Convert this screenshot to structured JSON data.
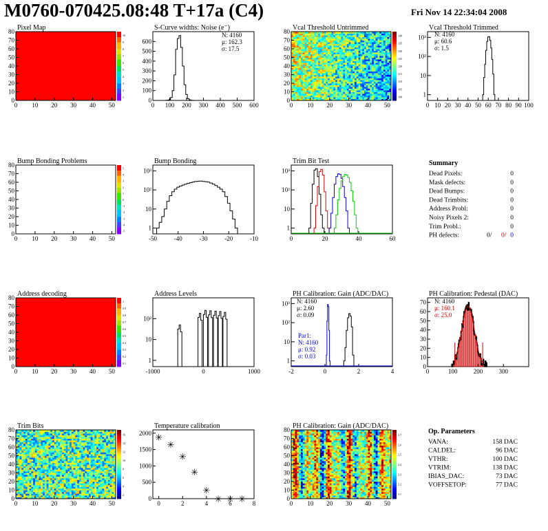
{
  "header": {
    "title": "M0760-070425.08:48 T+17a (C4)",
    "date": "Fri Nov 14 22:34:04 2008"
  },
  "colors": {
    "fill_red": "#ff0000",
    "series_black": "#000000",
    "series_red": "#dd0000",
    "series_blue": "#0000dd",
    "series_green": "#00cc00",
    "pedestal_hatch": "#cc0000"
  },
  "panels": {
    "pixel_map": {
      "title": "Pixel Map",
      "zmax": 10,
      "xticks": [
        "0",
        "10",
        "20",
        "30",
        "40",
        "50"
      ],
      "yticks": [
        "0",
        "10",
        "20",
        "30",
        "40",
        "50",
        "60",
        "70",
        "80"
      ],
      "palette_ticks": [
        "1",
        "2",
        "3",
        "4",
        "5",
        "6",
        "7",
        "8",
        "9",
        "10"
      ]
    },
    "vcal_untrimmed": {
      "title": "Vcal Threshold Untrimmed",
      "xticks": [
        "0",
        "10",
        "20",
        "30",
        "40",
        "50"
      ],
      "yticks": [
        "0",
        "10",
        "20",
        "30",
        "40",
        "50",
        "60",
        "70",
        "80"
      ],
      "palette_ticks": [
        "100",
        "105",
        "110",
        "115",
        "120",
        "125",
        "130",
        "135",
        "140"
      ]
    },
    "bump_bonding_problems": {
      "title": "Bump Bonding Problems",
      "xticks": [
        "0",
        "10",
        "20",
        "30",
        "40",
        "50"
      ],
      "yticks": [
        "0",
        "10",
        "20",
        "30",
        "40",
        "50",
        "60",
        "70",
        "80"
      ],
      "palette_ticks": [
        "-5",
        "-4",
        "-3",
        "-2",
        "-1",
        "0",
        "1",
        "2",
        "3",
        "4",
        "5"
      ]
    },
    "address_decoding": {
      "title": "Address decoding",
      "xticks": [
        "0",
        "10",
        "20",
        "30",
        "40",
        "50"
      ],
      "yticks": [
        "0",
        "10",
        "20",
        "30",
        "40",
        "50",
        "60",
        "70",
        "80"
      ],
      "palette_ticks": [
        "0.1",
        "0.2",
        "0.3",
        "0.4",
        "0.5",
        "0.6",
        "0.7",
        "0.8",
        "0.9",
        "1"
      ]
    },
    "trim_bits": {
      "title": "Trim Bits",
      "xticks": [
        "0",
        "10",
        "20",
        "30",
        "40",
        "50"
      ],
      "yticks": [
        "0",
        "10",
        "20",
        "30",
        "40",
        "50",
        "60",
        "70",
        "80"
      ],
      "palette_ticks": [
        "2",
        "4",
        "6",
        "8",
        "10",
        "12",
        "14",
        "16"
      ]
    },
    "ph_gain_map": {
      "title": "PH Calibration: Gain (ADC/DAC)",
      "xticks": [
        "0",
        "10",
        "20",
        "30",
        "40",
        "50"
      ],
      "yticks": [
        "0",
        "10",
        "20",
        "30",
        "40",
        "50",
        "60",
        "70",
        "80"
      ],
      "palette_ticks": [
        "2.1",
        "2.2",
        "2.3",
        "2.4",
        "2.5",
        "2.6",
        "2.7"
      ]
    }
  },
  "summary": {
    "title": "Summary",
    "rows": [
      {
        "label": "Dead Pixels:",
        "value": "0"
      },
      {
        "label": "Mask defects:",
        "value": "0"
      },
      {
        "label": "Dead Bumps:",
        "value": "0"
      },
      {
        "label": "Dead Trimbits:",
        "value": "0"
      },
      {
        "label": "Address Probl:",
        "value": "0"
      },
      {
        "label": "Noisy Pixels 2:",
        "value": "0"
      },
      {
        "label": "Trim Probl.:",
        "value": "0"
      }
    ],
    "ph_defects": {
      "label": "PH defects:",
      "v1": "0/",
      "v2": "0/",
      "v3": "0"
    }
  },
  "op_parameters": {
    "title": "Op. Parameters",
    "rows": [
      {
        "label": "VANA:",
        "value": "158 DAC"
      },
      {
        "label": "CALDEL:",
        "value": "96 DAC"
      },
      {
        "label": "VTHR:",
        "value": "100 DAC"
      },
      {
        "label": "VTRIM:",
        "value": "138 DAC"
      },
      {
        "label": "IBIAS_DAC:",
        "value": "73 DAC"
      },
      {
        "label": "VOFFSETOP:",
        "value": "77 DAC"
      }
    ]
  },
  "chart_data": [
    {
      "type": "histogram",
      "id": "scurve_noise",
      "title": "S-Curve widths: Noise (e⁻)",
      "xlim": [
        0,
        600
      ],
      "ylim": [
        0,
        700
      ],
      "log": false,
      "xticks": [
        "0",
        "100",
        "200",
        "300",
        "400",
        "500",
        "600"
      ],
      "yticks": [
        "0",
        "100",
        "200",
        "300",
        "400",
        "500",
        "600"
      ],
      "stats": {
        "N": "N: 4160",
        "mu": "μ: 162.3",
        "sigma": "σ: 17.5"
      },
      "series": [
        {
          "color": "black",
          "x": [
            80,
            90,
            100,
            110,
            120,
            130,
            140,
            150,
            160,
            170,
            180,
            190,
            200,
            210,
            220,
            230,
            240
          ],
          "values": [
            1,
            3,
            8,
            30,
            100,
            260,
            520,
            630,
            660,
            540,
            350,
            160,
            60,
            18,
            6,
            2,
            1
          ]
        }
      ]
    },
    {
      "type": "histogram",
      "id": "vcal_trimmed",
      "title": "Vcal Threshold Trimmed",
      "xlim": [
        0,
        100
      ],
      "ylim": [
        0.5,
        2000
      ],
      "log": true,
      "xticks": [
        "0",
        "10",
        "20",
        "30",
        "40",
        "50",
        "60",
        "70",
        "80",
        "90",
        "100"
      ],
      "yticks": [
        "1",
        "10",
        "10²",
        "10³"
      ],
      "stats": {
        "N": "N: 4160",
        "mu": "μ: 60.6",
        "sigma": "σ: 1.5"
      },
      "series": [
        {
          "color": "black",
          "x": [
            55,
            56,
            57,
            58,
            59,
            60,
            61,
            62,
            63,
            64,
            65,
            66
          ],
          "values": [
            1,
            8,
            40,
            210,
            620,
            1050,
            1100,
            700,
            280,
            70,
            12,
            1
          ]
        }
      ]
    },
    {
      "type": "histogram",
      "id": "bump_bonding",
      "title": "Bump Bonding",
      "xlim": [
        -50,
        -10
      ],
      "ylim": [
        0.5,
        2000
      ],
      "log": true,
      "xticks": [
        "-50",
        "-40",
        "-30",
        "-20",
        "-10"
      ],
      "yticks": [
        "1",
        "10",
        "10²",
        "10³"
      ],
      "series": [
        {
          "color": "black",
          "x": [
            -48,
            -47,
            -46,
            -45,
            -44,
            -43,
            -42,
            -41,
            -40,
            -39,
            -38,
            -37,
            -36,
            -35,
            -34,
            -33,
            -32,
            -31,
            -30,
            -29,
            -28,
            -27,
            -26,
            -25,
            -24,
            -23,
            -22,
            -21,
            -20,
            -19,
            -18,
            -17,
            -16
          ],
          "values": [
            1,
            2,
            4,
            10,
            25,
            50,
            80,
            110,
            140,
            160,
            180,
            200,
            220,
            240,
            260,
            275,
            285,
            290,
            280,
            270,
            255,
            230,
            200,
            170,
            140,
            110,
            80,
            45,
            20,
            8,
            3,
            1,
            0
          ]
        }
      ]
    },
    {
      "type": "histogram",
      "id": "trim_bit_test",
      "title": "Trim Bit Test",
      "xlim": [
        0,
        60
      ],
      "ylim": [
        0.5,
        2000
      ],
      "log": true,
      "xticks": [
        "0",
        "20",
        "40",
        "60"
      ],
      "yticks": [
        "1",
        "10",
        "10²",
        "10³"
      ],
      "series": [
        {
          "color": "black",
          "x": [
            11,
            12,
            13,
            14,
            15,
            16,
            17,
            18,
            19
          ],
          "values": [
            1,
            20,
            200,
            1100,
            1300,
            500,
            60,
            5,
            1
          ]
        },
        {
          "color": "red",
          "x": [
            14,
            15,
            16,
            17,
            18,
            19,
            20,
            21,
            22
          ],
          "values": [
            1,
            15,
            150,
            900,
            1200,
            600,
            80,
            8,
            1
          ]
        },
        {
          "color": "blue",
          "x": [
            23,
            24,
            25,
            26,
            27,
            28,
            29,
            30,
            31,
            32,
            33,
            34
          ],
          "values": [
            1,
            6,
            40,
            200,
            500,
            700,
            650,
            400,
            150,
            40,
            8,
            1
          ]
        },
        {
          "color": "green",
          "x": [
            26,
            27,
            28,
            29,
            30,
            31,
            32,
            33,
            34,
            35,
            36,
            37,
            38,
            39
          ],
          "values": [
            1,
            5,
            30,
            120,
            300,
            500,
            650,
            600,
            450,
            250,
            90,
            25,
            5,
            1
          ]
        }
      ]
    },
    {
      "type": "histogram",
      "id": "address_levels",
      "title": "Address Levels",
      "xlim": [
        -1500,
        1500
      ],
      "ylim": [
        0.5,
        1000
      ],
      "log": true,
      "xticks": [
        "-1000",
        "0",
        "1000"
      ],
      "yticks": [
        "1",
        "10",
        "10²"
      ],
      "series": [
        {
          "color": "black",
          "peaks": [
            -700,
            -100,
            60,
            210,
            360,
            500,
            640
          ],
          "heights": [
            50,
            180,
            250,
            240,
            230,
            220,
            200
          ]
        }
      ]
    },
    {
      "type": "histogram",
      "id": "ph_gain",
      "title": "PH Calibration: Gain (ADC/DAC)",
      "xlim": [
        -2,
        6
      ],
      "ylim": [
        0.5,
        2000
      ],
      "log": true,
      "xticks": [
        "-2",
        "0",
        "2",
        "4"
      ],
      "yticks": [
        "1",
        "10",
        "10²",
        "10³"
      ],
      "stats": {
        "N": "N: 4160",
        "mu": "μ: 2.60",
        "sigma": "σ: 0.09"
      },
      "stats2": {
        "label": "Par1:",
        "N": "N: 4160",
        "mu": "μ: 0.92",
        "sigma": "σ: 0.03"
      },
      "series": [
        {
          "color": "black",
          "x": [
            2.2,
            2.3,
            2.4,
            2.5,
            2.6,
            2.7,
            2.8,
            2.9
          ],
          "values": [
            1,
            5,
            40,
            180,
            300,
            220,
            60,
            2
          ]
        },
        {
          "color": "blue",
          "x": [
            0.8,
            0.85,
            0.9,
            0.95,
            1.0,
            1.05
          ],
          "values": [
            2,
            120,
            900,
            700,
            40,
            1
          ]
        }
      ]
    },
    {
      "type": "histogram",
      "id": "ph_pedestal",
      "title": "PH Calibration: Pedestal (DAC)",
      "xlim": [
        0,
        400
      ],
      "ylim": [
        0,
        75
      ],
      "log": false,
      "xticks": [
        "0",
        "100",
        "200",
        "300"
      ],
      "yticks": [
        "0",
        "10",
        "20",
        "30",
        "40",
        "50",
        "60",
        "70"
      ],
      "stats": {
        "N": "N: 4160",
        "mu": "μ: 160.1",
        "sigma": "σ: 25.0"
      },
      "fit": {
        "mean": 160.1,
        "sigma": 25.0,
        "amp": 66,
        "range": [
          108,
          218
        ]
      },
      "series": [
        {
          "color": "black",
          "histogram": "noisy_gaussian"
        }
      ]
    },
    {
      "type": "scatter",
      "id": "temperature_calibration",
      "title": "Temperature calibration",
      "xlim": [
        -0.5,
        8
      ],
      "ylim": [
        0,
        2100
      ],
      "log": false,
      "xticks": [
        "0",
        "2",
        "4",
        "6",
        "8"
      ],
      "yticks": [
        "0",
        "500",
        "1000",
        "1500",
        "2000"
      ],
      "series": [
        {
          "color": "black",
          "marker": "star",
          "x": [
            0,
            1,
            2,
            3,
            4,
            5,
            6,
            7
          ],
          "values": [
            1880,
            1660,
            1290,
            820,
            260,
            0,
            0,
            0
          ]
        }
      ]
    }
  ]
}
